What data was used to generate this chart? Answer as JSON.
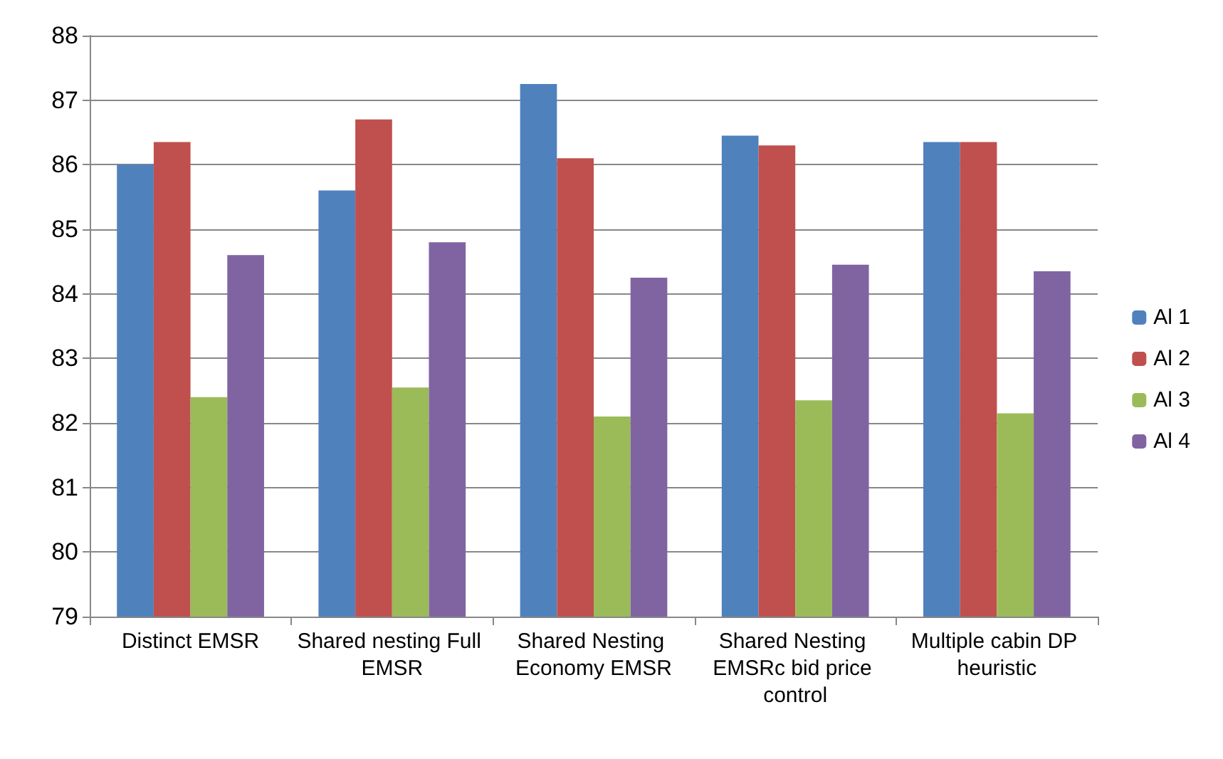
{
  "chart_data": {
    "type": "bar",
    "categories": [
      "Distinct EMSR",
      "Shared nesting Full EMSR",
      "Shared Nesting Economy EMSR",
      "Shared Nesting EMSRc bid price control",
      "Multiple cabin DP heuristic"
    ],
    "series": [
      {
        "name": "Al 1",
        "color": "#4f81bd",
        "values": [
          86.0,
          85.6,
          87.25,
          86.45,
          86.35
        ]
      },
      {
        "name": "Al 2",
        "color": "#c0504d",
        "values": [
          86.35,
          86.7,
          86.1,
          86.3,
          86.35
        ]
      },
      {
        "name": "Al 3",
        "color": "#9bbb59",
        "values": [
          82.4,
          82.55,
          82.1,
          82.35,
          82.15
        ]
      },
      {
        "name": "Al 4",
        "color": "#8064a2",
        "values": [
          84.6,
          84.8,
          84.25,
          84.45,
          84.35
        ]
      }
    ],
    "ylim": [
      79,
      88
    ],
    "yticks": [
      79,
      80,
      81,
      82,
      83,
      84,
      85,
      86,
      87,
      88
    ],
    "grid": "y",
    "legend": "right"
  }
}
